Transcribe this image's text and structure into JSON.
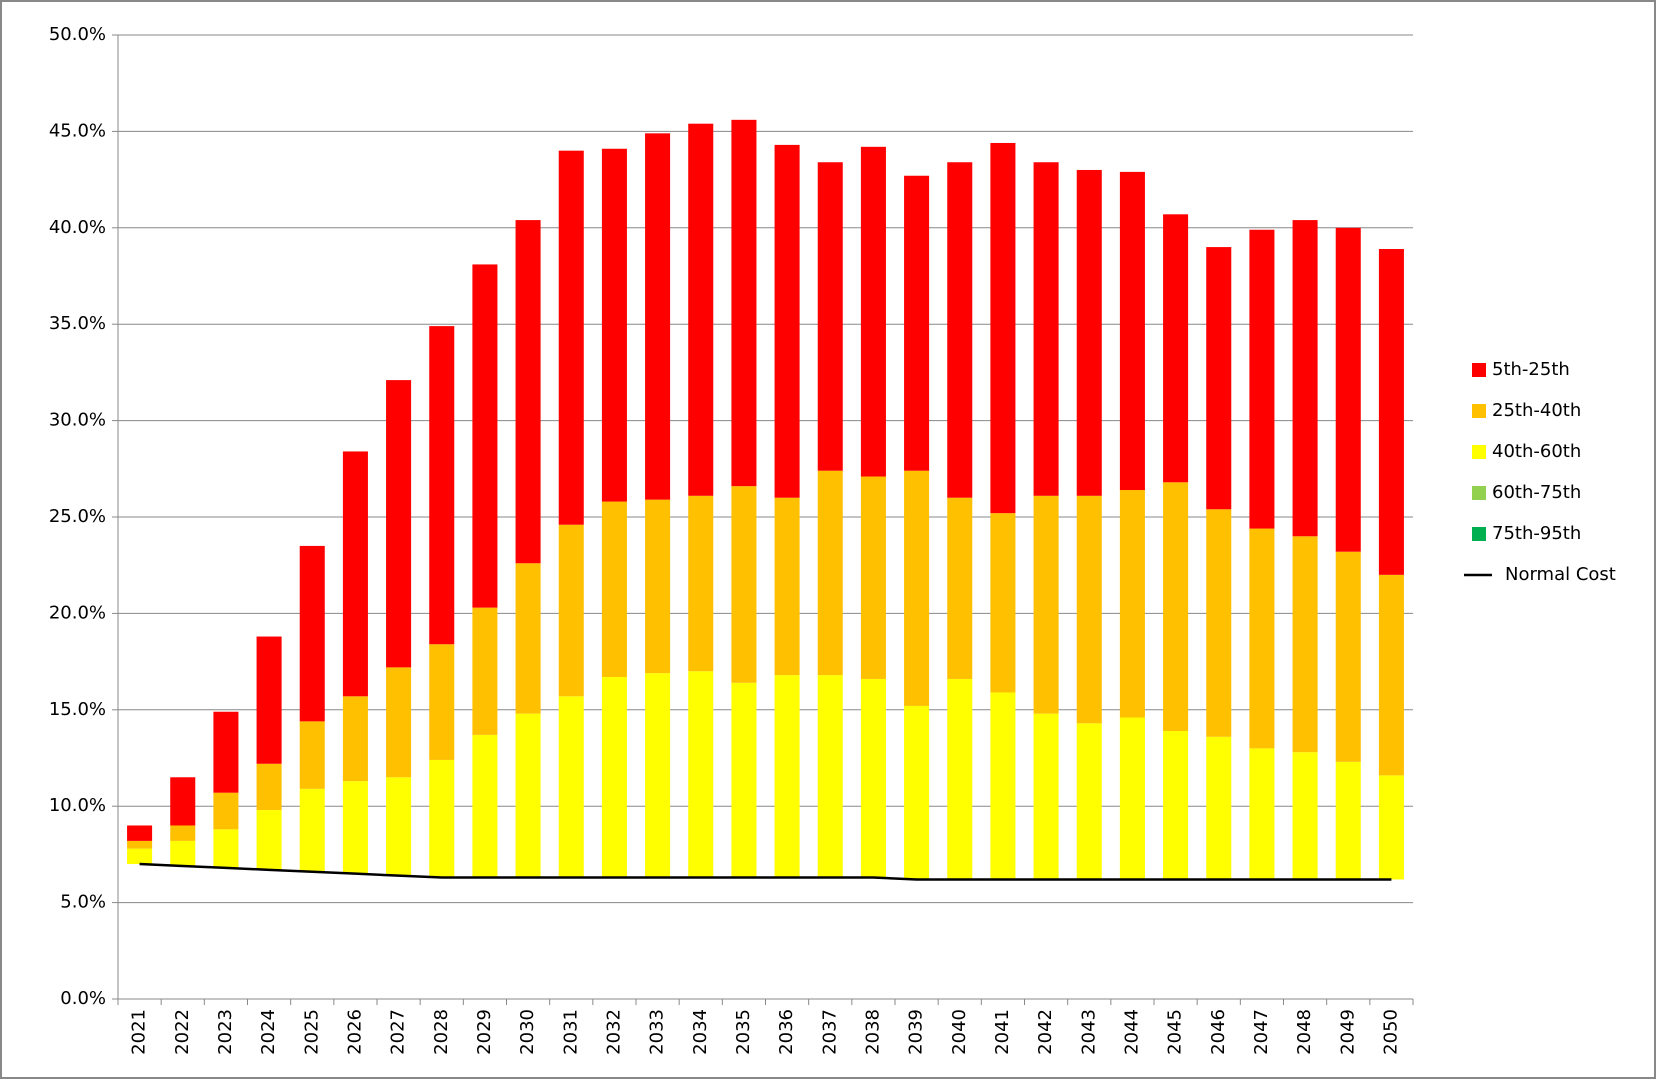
{
  "chart_data": {
    "type": "bar",
    "stacked": true,
    "categories": [
      "2021",
      "2022",
      "2023",
      "2024",
      "2025",
      "2026",
      "2027",
      "2028",
      "2029",
      "2030",
      "2031",
      "2032",
      "2033",
      "2034",
      "2035",
      "2036",
      "2037",
      "2038",
      "2039",
      "2040",
      "2041",
      "2042",
      "2043",
      "2044",
      "2045",
      "2046",
      "2047",
      "2048",
      "2049",
      "2050"
    ],
    "series": [
      {
        "name": "Normal Cost",
        "type": "line",
        "color": "#000000",
        "values": [
          7.0,
          6.9,
          6.8,
          6.7,
          6.6,
          6.5,
          6.4,
          6.3,
          6.3,
          6.3,
          6.3,
          6.3,
          6.3,
          6.3,
          6.3,
          6.3,
          6.3,
          6.3,
          6.2,
          6.2,
          6.2,
          6.2,
          6.2,
          6.2,
          6.2,
          6.2,
          6.2,
          6.2,
          6.2,
          6.2
        ]
      },
      {
        "name": "75th-95th",
        "color": "#00b050",
        "values": [
          0,
          0,
          0,
          0,
          0,
          0,
          0,
          0,
          0,
          0,
          0,
          0,
          0,
          0,
          0,
          0,
          0,
          0,
          0,
          0,
          0,
          0,
          0,
          0,
          0,
          0,
          0,
          0,
          0,
          0
        ]
      },
      {
        "name": "60th-75th",
        "color": "#92d050",
        "values": [
          0,
          0,
          0,
          0,
          0,
          0,
          0,
          0,
          0,
          0,
          0,
          0,
          0,
          0,
          0,
          0,
          0,
          0,
          0,
          0,
          0,
          0,
          0,
          0,
          0,
          0,
          0,
          0,
          0,
          0
        ]
      },
      {
        "name": "40th-60th",
        "color": "#ffff00",
        "values": [
          0.8,
          1.3,
          2.0,
          3.1,
          4.3,
          4.8,
          5.1,
          6.1,
          7.4,
          8.5,
          9.4,
          10.4,
          10.6,
          10.7,
          10.1,
          10.5,
          10.5,
          10.3,
          9.0,
          10.4,
          9.7,
          8.6,
          8.1,
          8.4,
          7.7,
          7.4,
          6.8,
          6.6,
          6.1,
          5.4
        ]
      },
      {
        "name": "25th-40th",
        "color": "#ffc000",
        "values": [
          0.4,
          0.8,
          1.9,
          2.4,
          3.5,
          4.4,
          5.7,
          6.0,
          6.6,
          7.8,
          8.9,
          9.1,
          9.0,
          9.1,
          10.2,
          9.2,
          10.6,
          10.5,
          12.2,
          9.4,
          9.3,
          11.3,
          11.8,
          11.8,
          12.9,
          11.8,
          11.4,
          11.2,
          10.9,
          10.4
        ]
      },
      {
        "name": "5th-25th",
        "color": "#ff0000",
        "values": [
          0.8,
          2.5,
          4.2,
          6.6,
          9.1,
          12.7,
          14.9,
          16.5,
          17.8,
          17.8,
          19.4,
          18.3,
          19.0,
          19.3,
          19.0,
          18.3,
          16.0,
          17.1,
          15.3,
          17.4,
          19.2,
          17.3,
          16.9,
          16.5,
          13.9,
          13.6,
          15.5,
          16.4,
          16.8,
          16.9
        ]
      }
    ],
    "ylim": [
      0,
      50
    ],
    "yticks": [
      {
        "value": 0,
        "label": "0.0%"
      },
      {
        "value": 5,
        "label": "5.0%"
      },
      {
        "value": 10,
        "label": "10.0%"
      },
      {
        "value": 15,
        "label": "15.0%"
      },
      {
        "value": 20,
        "label": "20.0%"
      },
      {
        "value": 25,
        "label": "25.0%"
      },
      {
        "value": 30,
        "label": "30.0%"
      },
      {
        "value": 35,
        "label": "35.0%"
      },
      {
        "value": 40,
        "label": "40.0%"
      },
      {
        "value": 45,
        "label": "45.0%"
      },
      {
        "value": 50,
        "label": "50.0%"
      }
    ],
    "grid": true,
    "legend": "right"
  }
}
